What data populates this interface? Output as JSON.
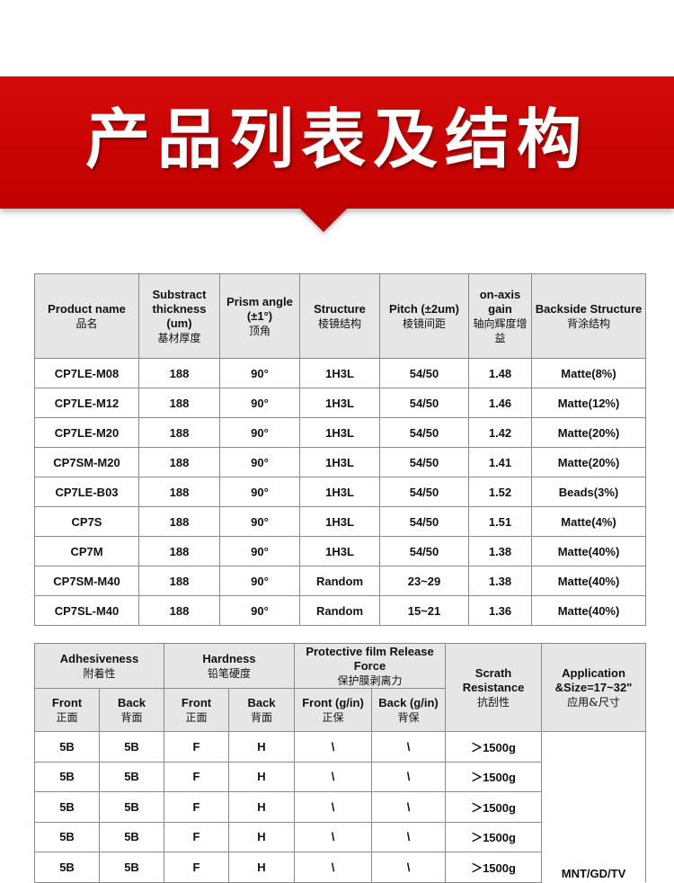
{
  "banner": {
    "title": "产品列表及结构",
    "color": "#c80606"
  },
  "table1": {
    "headers": [
      {
        "en": "Product name",
        "cn": "品名"
      },
      {
        "en": "Substract thickness (um)",
        "cn": "基材厚度"
      },
      {
        "en": "Prism angle (±1°)",
        "cn": "顶角"
      },
      {
        "en": "Structure",
        "cn": "棱镜结构"
      },
      {
        "en": "Pitch (±2um)",
        "cn": "棱镜间距"
      },
      {
        "en": "on-axis gain",
        "cn": "轴向辉度增益"
      },
      {
        "en": "Backside Structure",
        "cn": "背涂结构"
      }
    ],
    "rows": [
      [
        "CP7LE-M08",
        "188",
        "90°",
        "1H3L",
        "54/50",
        "1.48",
        "Matte(8%)"
      ],
      [
        "CP7LE-M12",
        "188",
        "90°",
        "1H3L",
        "54/50",
        "1.46",
        "Matte(12%)"
      ],
      [
        "CP7LE-M20",
        "188",
        "90°",
        "1H3L",
        "54/50",
        "1.42",
        "Matte(20%)"
      ],
      [
        "CP7SM-M20",
        "188",
        "90°",
        "1H3L",
        "54/50",
        "1.41",
        "Matte(20%)"
      ],
      [
        "CP7LE-B03",
        "188",
        "90°",
        "1H3L",
        "54/50",
        "1.52",
        "Beads(3%)"
      ],
      [
        "CP7S",
        "188",
        "90°",
        "1H3L",
        "54/50",
        "1.51",
        "Matte(4%)"
      ],
      [
        "CP7M",
        "188",
        "90°",
        "1H3L",
        "54/50",
        "1.38",
        "Matte(40%)"
      ],
      [
        "CP7SM-M40",
        "188",
        "90°",
        "Random",
        "23~29",
        "1.38",
        "Matte(40%)"
      ],
      [
        "CP7SL-M40",
        "188",
        "90°",
        "Random",
        "15~21",
        "1.36",
        "Matte(40%)"
      ]
    ]
  },
  "table2": {
    "groups": [
      {
        "en": "Adhesiveness",
        "cn": "附着性"
      },
      {
        "en": "Hardness",
        "cn": "铅笔硬度"
      },
      {
        "en": "Protective film Release Force",
        "cn": "保护膜剥离力"
      },
      {
        "en": "Scrath Resistance",
        "cn": "抗刮性"
      },
      {
        "en": "Application &Size=17~32\"",
        "cn": "应用&尺寸"
      }
    ],
    "subheaders": [
      {
        "en": "Front",
        "cn": "正面"
      },
      {
        "en": "Back",
        "cn": "背面"
      },
      {
        "en": "Front",
        "cn": "正面"
      },
      {
        "en": "Back",
        "cn": "背面"
      },
      {
        "en": "Front (g/in)",
        "cn": "正保"
      },
      {
        "en": "Back (g/in)",
        "cn": "背保"
      }
    ],
    "rows": [
      [
        "5B",
        "5B",
        "F",
        "H",
        "\\",
        "\\",
        "＞1500g"
      ],
      [
        "5B",
        "5B",
        "F",
        "H",
        "\\",
        "\\",
        "＞1500g"
      ],
      [
        "5B",
        "5B",
        "F",
        "H",
        "\\",
        "\\",
        "＞1500g"
      ],
      [
        "5B",
        "5B",
        "F",
        "H",
        "\\",
        "\\",
        "＞1500g"
      ],
      [
        "5B",
        "5B",
        "F",
        "H",
        "\\",
        "\\",
        "＞1500g"
      ]
    ],
    "application": "MNT/GD/TV"
  }
}
